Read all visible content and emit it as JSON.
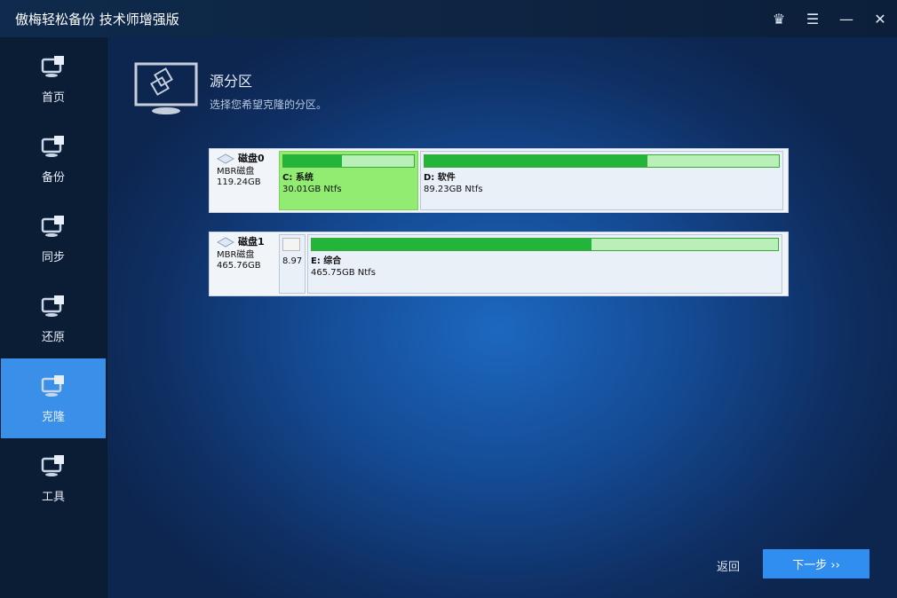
{
  "app": {
    "title": "傲梅轻松备份 技术师增强版"
  },
  "titlebar": {
    "icons": [
      "crown-icon",
      "menu-icon",
      "minimize-icon",
      "close-icon"
    ]
  },
  "sidebar": {
    "items": [
      {
        "label": "首页",
        "icon": "home-icon"
      },
      {
        "label": "备份",
        "icon": "backup-icon"
      },
      {
        "label": "同步",
        "icon": "sync-icon"
      },
      {
        "label": "还原",
        "icon": "restore-icon"
      },
      {
        "label": "克隆",
        "icon": "clone-icon",
        "active": true
      },
      {
        "label": "工具",
        "icon": "tools-icon"
      }
    ]
  },
  "header": {
    "title": "源分区",
    "subtitle": "选择您希望克隆的分区。"
  },
  "colors": {
    "accent": "#3a8fe8",
    "selected_partition": "#92ec72",
    "used_bar": "#22b53a"
  },
  "disks": [
    {
      "name": "磁盘0",
      "type": "MBR磁盘",
      "size": "119.24GB",
      "partitions": [
        {
          "label": "C: 系统",
          "info": "30.01GB Ntfs",
          "used_pct": 45,
          "selected": true
        },
        {
          "label": "D: 软件",
          "info": "89.23GB Ntfs",
          "used_pct": 63
        }
      ]
    },
    {
      "name": "磁盘1",
      "type": "MBR磁盘",
      "size": "465.76GB",
      "partitions": [
        {
          "label": "",
          "info": "8.97",
          "used_pct": 0
        },
        {
          "label": "E: 综合",
          "info": "465.75GB Ntfs",
          "used_pct": 60
        }
      ]
    }
  ],
  "footer": {
    "back": "返回",
    "next": "下一步 ››"
  }
}
